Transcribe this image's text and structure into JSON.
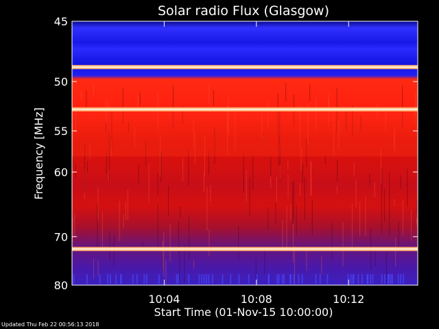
{
  "chart_data": {
    "type": "heatmap",
    "title": "Solar radio Flux (Glasgow)",
    "xlabel": "Start Time (01-Nov-15 10:00:00)",
    "ylabel": "Frequency [MHz]",
    "x_tick_labels": [
      "10:04",
      "10:08",
      "10:12"
    ],
    "x_tick_values_min": [
      4,
      8,
      12
    ],
    "xlim_min": [
      0,
      15
    ],
    "y_tick_labels": [
      "45",
      "50",
      "55",
      "60",
      "70",
      "80"
    ],
    "y_tick_values": [
      45,
      50,
      55,
      60,
      70,
      80
    ],
    "ylim": [
      45,
      80
    ],
    "y_scale": "reciprocal",
    "colormap": [
      "#1010d0",
      "#2020ff",
      "#6010c0",
      "#b00000",
      "#ff2010",
      "#ffe0a0"
    ],
    "bright_bands_mhz": [
      48.7,
      52.7,
      72.3
    ],
    "strong_red_band_mhz": [
      53,
      58
    ],
    "colorbar": false
  },
  "footer": {
    "text": "Updated Thu Feb 22 00:56:13 2018"
  }
}
